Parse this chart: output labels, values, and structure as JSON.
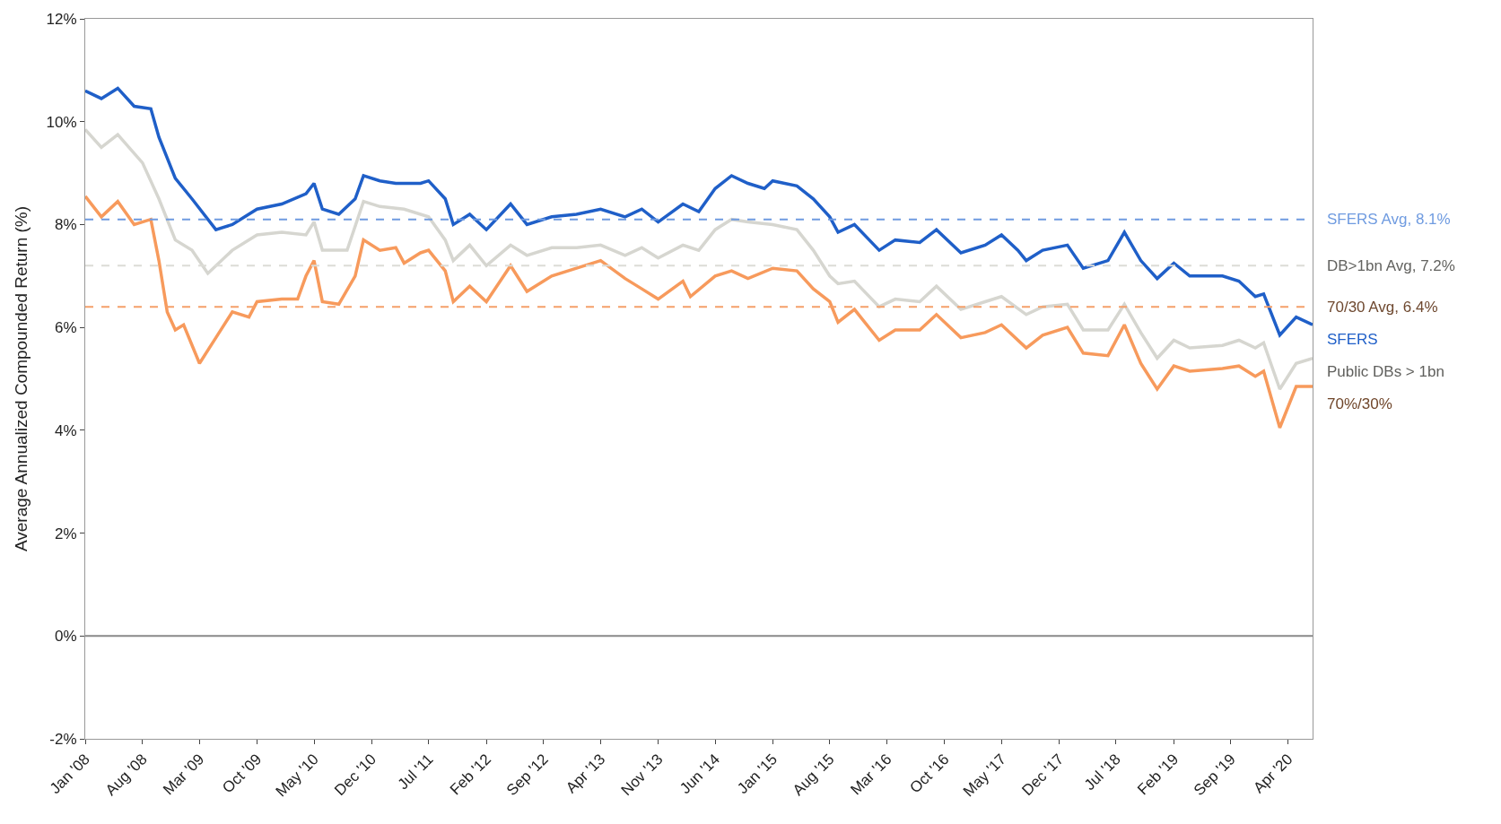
{
  "chart_data": {
    "type": "line",
    "ylabel": "Average Annualized Compounded Return (%)",
    "xlim": [
      "2008-01",
      "2020-07"
    ],
    "xticks": [
      {
        "value": "2008-01",
        "label": "Jan '08"
      },
      {
        "value": "2008-08",
        "label": "Aug '08"
      },
      {
        "value": "2009-03",
        "label": "Mar '09"
      },
      {
        "value": "2009-10",
        "label": "Oct '09"
      },
      {
        "value": "2010-05",
        "label": "May '10"
      },
      {
        "value": "2010-12",
        "label": "Dec '10"
      },
      {
        "value": "2011-07",
        "label": "Jul '11"
      },
      {
        "value": "2012-02",
        "label": "Feb '12"
      },
      {
        "value": "2012-09",
        "label": "Sep '12"
      },
      {
        "value": "2013-04",
        "label": "Apr '13"
      },
      {
        "value": "2013-11",
        "label": "Nov '13"
      },
      {
        "value": "2014-06",
        "label": "Jun '14"
      },
      {
        "value": "2015-01",
        "label": "Jan '15"
      },
      {
        "value": "2015-08",
        "label": "Aug '15"
      },
      {
        "value": "2016-03",
        "label": "Mar '16"
      },
      {
        "value": "2016-10",
        "label": "Oct '16"
      },
      {
        "value": "2017-05",
        "label": "May '17"
      },
      {
        "value": "2017-12",
        "label": "Dec '17"
      },
      {
        "value": "2018-07",
        "label": "Jul '18"
      },
      {
        "value": "2019-02",
        "label": "Feb '19"
      },
      {
        "value": "2019-09",
        "label": "Sep '19"
      },
      {
        "value": "2020-04",
        "label": "Apr '20"
      }
    ],
    "ylim": [
      -2,
      12
    ],
    "yticks": [
      {
        "value": -2,
        "label": "-2%"
      },
      {
        "value": 0,
        "label": "0%"
      },
      {
        "value": 2,
        "label": "2%"
      },
      {
        "value": 4,
        "label": "4%"
      },
      {
        "value": 6,
        "label": "6%"
      },
      {
        "value": 8,
        "label": "8%"
      },
      {
        "value": 10,
        "label": "10%"
      },
      {
        "value": 12,
        "label": "12%"
      }
    ],
    "legend": false,
    "marker": "none",
    "line_style": "solid",
    "series": [
      {
        "name": "Public DBs > 1bn",
        "color": "#d6d6d0",
        "x": [
          "2008-01",
          "2008-03",
          "2008-05",
          "2008-08",
          "2008-10",
          "2008-12",
          "2009-02",
          "2009-04",
          "2009-07",
          "2009-10",
          "2010-01",
          "2010-04",
          "2010-05",
          "2010-06",
          "2010-09",
          "2010-11",
          "2011-01",
          "2011-04",
          "2011-07",
          "2011-09",
          "2011-10",
          "2011-12",
          "2012-02",
          "2012-05",
          "2012-07",
          "2012-10",
          "2013-01",
          "2013-04",
          "2013-07",
          "2013-09",
          "2013-11",
          "2014-02",
          "2014-04",
          "2014-06",
          "2014-08",
          "2014-10",
          "2015-01",
          "2015-04",
          "2015-06",
          "2015-08",
          "2015-09",
          "2015-11",
          "2016-02",
          "2016-04",
          "2016-07",
          "2016-09",
          "2016-12",
          "2017-03",
          "2017-05",
          "2017-08",
          "2017-10",
          "2018-01",
          "2018-03",
          "2018-06",
          "2018-08",
          "2018-10",
          "2018-12",
          "2019-02",
          "2019-04",
          "2019-08",
          "2019-10",
          "2019-12",
          "2020-01",
          "2020-03",
          "2020-05",
          "2020-07"
        ],
        "values": [
          9.85,
          9.5,
          9.75,
          9.2,
          8.5,
          7.7,
          7.5,
          7.05,
          7.5,
          7.8,
          7.85,
          7.8,
          8.05,
          7.5,
          7.5,
          8.45,
          8.35,
          8.3,
          8.15,
          7.7,
          7.3,
          7.6,
          7.2,
          7.6,
          7.4,
          7.55,
          7.55,
          7.6,
          7.4,
          7.55,
          7.35,
          7.6,
          7.5,
          7.9,
          8.1,
          8.05,
          8.0,
          7.9,
          7.5,
          7.0,
          6.85,
          6.9,
          6.4,
          6.55,
          6.5,
          6.8,
          6.35,
          6.5,
          6.6,
          6.25,
          6.4,
          6.45,
          5.95,
          5.95,
          6.45,
          5.9,
          5.4,
          5.75,
          5.6,
          5.65,
          5.75,
          5.6,
          5.7,
          4.8,
          5.3,
          5.4
        ]
      },
      {
        "name": "70%/30%",
        "color": "#f79a5c",
        "x": [
          "2008-01",
          "2008-03",
          "2008-05",
          "2008-07",
          "2008-09",
          "2008-10",
          "2008-11",
          "2008-12",
          "2009-01",
          "2009-03",
          "2009-05",
          "2009-07",
          "2009-09",
          "2009-10",
          "2010-01",
          "2010-03",
          "2010-04",
          "2010-05",
          "2010-06",
          "2010-08",
          "2010-10",
          "2010-11",
          "2011-01",
          "2011-03",
          "2011-04",
          "2011-06",
          "2011-07",
          "2011-09",
          "2011-10",
          "2011-12",
          "2012-02",
          "2012-05",
          "2012-07",
          "2012-10",
          "2013-01",
          "2013-04",
          "2013-07",
          "2013-09",
          "2013-11",
          "2014-02",
          "2014-03",
          "2014-06",
          "2014-08",
          "2014-10",
          "2015-01",
          "2015-04",
          "2015-06",
          "2015-08",
          "2015-09",
          "2015-11",
          "2016-02",
          "2016-04",
          "2016-07",
          "2016-09",
          "2016-12",
          "2017-03",
          "2017-05",
          "2017-08",
          "2017-10",
          "2018-01",
          "2018-03",
          "2018-06",
          "2018-08",
          "2018-10",
          "2018-12",
          "2019-02",
          "2019-04",
          "2019-08",
          "2019-10",
          "2019-12",
          "2020-01",
          "2020-03",
          "2020-05",
          "2020-07"
        ],
        "values": [
          8.55,
          8.15,
          8.45,
          8.0,
          8.1,
          7.3,
          6.3,
          5.95,
          6.05,
          5.3,
          5.8,
          6.3,
          6.2,
          6.5,
          6.55,
          6.55,
          7.0,
          7.3,
          6.5,
          6.45,
          7.0,
          7.7,
          7.5,
          7.55,
          7.25,
          7.45,
          7.5,
          7.1,
          6.5,
          6.8,
          6.5,
          7.2,
          6.7,
          7.0,
          7.15,
          7.3,
          6.95,
          6.75,
          6.55,
          6.9,
          6.6,
          7.0,
          7.1,
          6.95,
          7.15,
          7.1,
          6.75,
          6.5,
          6.1,
          6.35,
          5.75,
          5.95,
          5.95,
          6.25,
          5.8,
          5.9,
          6.05,
          5.6,
          5.85,
          6.0,
          5.5,
          5.45,
          6.05,
          5.3,
          4.8,
          5.25,
          5.15,
          5.2,
          5.25,
          5.05,
          5.15,
          4.05,
          4.85,
          4.85
        ]
      },
      {
        "name": "SFERS",
        "color": "#1f5fc8",
        "x": [
          "2008-01",
          "2008-03",
          "2008-05",
          "2008-07",
          "2008-09",
          "2008-10",
          "2008-12",
          "2009-02",
          "2009-05",
          "2009-07",
          "2009-10",
          "2010-01",
          "2010-04",
          "2010-05",
          "2010-06",
          "2010-08",
          "2010-10",
          "2010-11",
          "2011-01",
          "2011-03",
          "2011-06",
          "2011-07",
          "2011-09",
          "2011-10",
          "2011-12",
          "2012-02",
          "2012-05",
          "2012-07",
          "2012-10",
          "2013-01",
          "2013-04",
          "2013-07",
          "2013-09",
          "2013-11",
          "2014-02",
          "2014-04",
          "2014-06",
          "2014-08",
          "2014-10",
          "2014-12",
          "2015-01",
          "2015-04",
          "2015-06",
          "2015-08",
          "2015-09",
          "2015-11",
          "2016-02",
          "2016-04",
          "2016-07",
          "2016-09",
          "2016-12",
          "2017-03",
          "2017-05",
          "2017-07",
          "2017-08",
          "2017-10",
          "2018-01",
          "2018-03",
          "2018-06",
          "2018-08",
          "2018-10",
          "2018-12",
          "2019-02",
          "2019-04",
          "2019-08",
          "2019-10",
          "2019-12",
          "2020-01",
          "2020-03",
          "2020-05",
          "2020-07"
        ],
        "values": [
          10.6,
          10.45,
          10.65,
          10.3,
          10.25,
          9.7,
          8.9,
          8.5,
          7.9,
          8.0,
          8.3,
          8.4,
          8.6,
          8.8,
          8.3,
          8.2,
          8.5,
          8.95,
          8.85,
          8.8,
          8.8,
          8.85,
          8.5,
          8.0,
          8.2,
          7.9,
          8.4,
          8.0,
          8.15,
          8.2,
          8.3,
          8.15,
          8.3,
          8.05,
          8.4,
          8.25,
          8.7,
          8.95,
          8.8,
          8.7,
          8.85,
          8.75,
          8.5,
          8.15,
          7.85,
          8.0,
          7.5,
          7.7,
          7.65,
          7.9,
          7.45,
          7.6,
          7.8,
          7.5,
          7.3,
          7.5,
          7.6,
          7.15,
          7.3,
          7.85,
          7.3,
          6.95,
          7.25,
          7.0,
          7.0,
          6.9,
          6.6,
          6.65,
          5.85,
          6.2,
          6.05
        ]
      }
    ],
    "ref_lines": [
      {
        "axis": "y",
        "value": 8.1,
        "label": "SFERS Avg, 8.1%",
        "color": "#6f9be0",
        "line_style": "dashed"
      },
      {
        "axis": "y",
        "value": 7.2,
        "label": "DB>1bn Avg, 7.2%",
        "color": "#dcdcd6",
        "line_style": "dashed"
      },
      {
        "axis": "y",
        "value": 6.4,
        "label": "70/30 Avg, 6.4%",
        "color": "#f5a06a",
        "line_style": "dashed"
      },
      {
        "axis": "y",
        "value": 0,
        "color": "#888888",
        "line_style": "solid"
      }
    ]
  }
}
